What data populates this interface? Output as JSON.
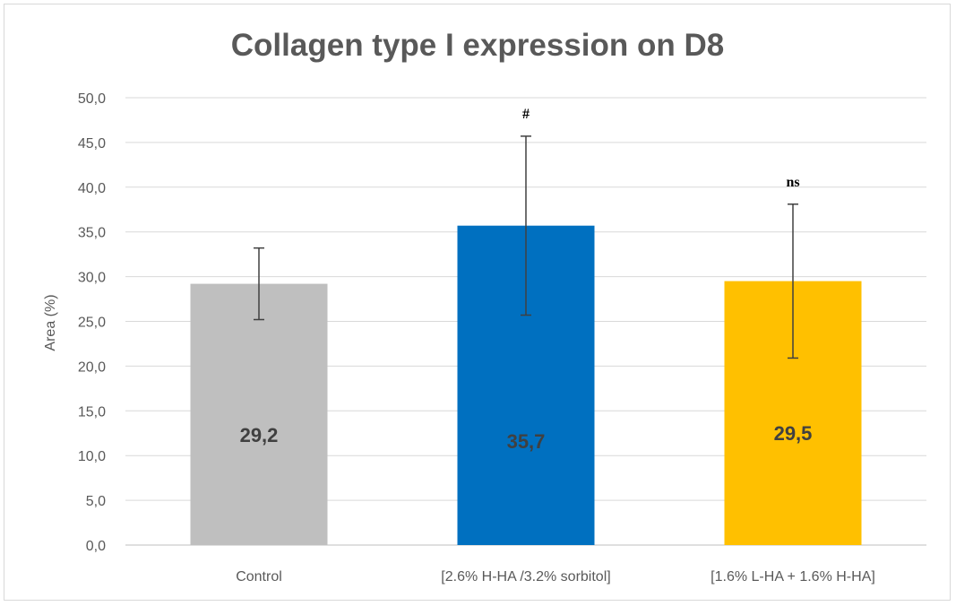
{
  "chart_data": {
    "type": "bar",
    "title": "Collagen type I expression on D8",
    "xlabel": "",
    "ylabel": "Area (%)",
    "ylim": [
      0,
      50
    ],
    "ytick_step": 5,
    "ytick_labels": [
      "0,0",
      "5,0",
      "10,0",
      "15,0",
      "20,0",
      "25,0",
      "30,0",
      "35,0",
      "40,0",
      "45,0",
      "50,0"
    ],
    "grid": true,
    "legend": "none",
    "categories": [
      "Control",
      "[2.6% H-HA /3.2% sorbitol]",
      "[1.6% L-HA + 1.6% H-HA]"
    ],
    "values": [
      29.2,
      35.7,
      29.5
    ],
    "value_labels": [
      "29,2",
      "35,7",
      "29,5"
    ],
    "error_bars": [
      4.0,
      10.0,
      8.6
    ],
    "colors": [
      "#bfbfbf",
      "#0070c0",
      "#ffc000"
    ],
    "annotations": [
      "",
      "#",
      "ns"
    ]
  }
}
